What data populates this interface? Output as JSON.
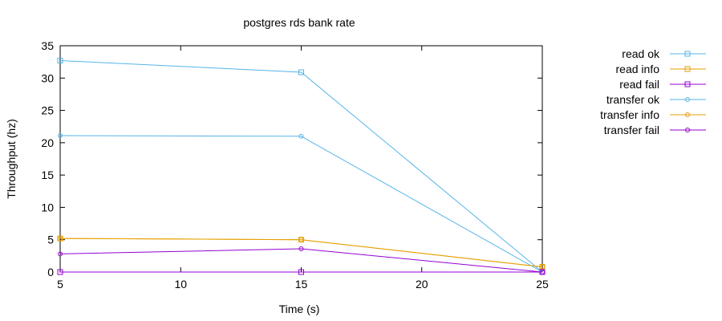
{
  "chart_data": {
    "type": "line",
    "title": "postgres rds bank rate",
    "xlabel": "Time (s)",
    "ylabel": "Throughput (hz)",
    "xlim": [
      5,
      25
    ],
    "ylim": [
      0,
      35
    ],
    "xticks": [
      5,
      10,
      15,
      20,
      25
    ],
    "yticks": [
      0,
      5,
      10,
      15,
      20,
      25,
      30,
      35
    ],
    "grid": false,
    "legend_position": "outside-right-top",
    "series": [
      {
        "name": "read ok",
        "color": "#56b4e9",
        "marker": "square",
        "x": [
          5,
          15,
          25
        ],
        "y": [
          32.7,
          30.9,
          0
        ]
      },
      {
        "name": "read info",
        "color": "#e69f00",
        "marker": "square",
        "x": [
          5,
          15,
          25
        ],
        "y": [
          5.2,
          5.0,
          0.8
        ]
      },
      {
        "name": "read fail",
        "color": "#9400d3",
        "marker": "square",
        "x": [
          5,
          15,
          25
        ],
        "y": [
          0,
          0,
          0
        ]
      },
      {
        "name": "transfer ok",
        "color": "#56b4e9",
        "marker": "circle",
        "x": [
          5,
          15,
          25
        ],
        "y": [
          21.1,
          21.0,
          0
        ]
      },
      {
        "name": "transfer info",
        "color": "#e69f00",
        "marker": "circle",
        "x": [
          5,
          15,
          25
        ],
        "y": [
          5.2,
          5.0,
          0.8
        ]
      },
      {
        "name": "transfer fail",
        "color": "#9400d3",
        "marker": "circle",
        "x": [
          5,
          15,
          25
        ],
        "y": [
          2.8,
          3.6,
          0
        ]
      }
    ]
  }
}
